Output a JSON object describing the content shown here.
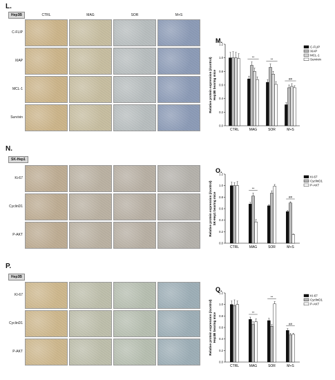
{
  "panels": {
    "L": {
      "letter": "L.",
      "tag": "Hep3B",
      "cols": [
        "CTRL",
        "MAG",
        "SOR",
        "M+S"
      ],
      "rows": [
        "C-FLIP",
        "XIAP",
        "MCL-1",
        "Survivin"
      ],
      "tint": [
        "#cdb68c",
        "#c8bfa2",
        "#b9bfc0",
        "#8e9db8"
      ]
    },
    "N": {
      "letter": "N.",
      "tag": "SK-Hep1",
      "rows": [
        "Ki-67",
        "CyclinD1",
        "P-AKT"
      ],
      "tint": [
        "#bfae95",
        "#bcb3a4",
        "#b9b1a5",
        "#b6b3ad"
      ]
    },
    "P": {
      "letter": "P.",
      "tag": "Hep3B",
      "rows": [
        "KI-67",
        "CyclinD1",
        "P-AKT"
      ],
      "tint": [
        "#cfb98f",
        "#bfc0ad",
        "#b8c0b2",
        "#9fb0b8"
      ]
    }
  },
  "chart_data": [
    {
      "panel": "M.",
      "type": "bar",
      "categories": [
        "CTRL",
        "MAG",
        "SOR",
        "M+S"
      ],
      "ylabel": "Relative protein expression (/control)",
      "ylabel2": "Hep3B bearing mice",
      "ylim": [
        0,
        1.2
      ],
      "yticks": [
        "0.0",
        "0.2",
        "0.4",
        "0.6",
        "0.8",
        "1.0",
        "1.2"
      ],
      "series": [
        {
          "name": "C-FLIP",
          "values": [
            1.0,
            0.69,
            0.64,
            0.31
          ],
          "err": [
            0.08,
            0.04,
            0.04,
            0.03
          ],
          "fill": "#111111"
        },
        {
          "name": "XIAP",
          "values": [
            1.0,
            0.89,
            0.86,
            0.56
          ],
          "err": [
            0.09,
            0.05,
            0.05,
            0.04
          ],
          "fill": "#bbbbbb"
        },
        {
          "name": "MCL-1",
          "values": [
            1.0,
            0.8,
            0.76,
            0.58
          ],
          "err": [
            0.08,
            0.05,
            0.04,
            0.04
          ],
          "fill": "#dddddd"
        },
        {
          "name": "Survivin",
          "values": [
            0.99,
            0.68,
            0.61,
            0.56
          ],
          "err": [
            0.07,
            0.04,
            0.04,
            0.03
          ],
          "fill": "#ffffff"
        }
      ],
      "sig": {
        "MAG": "**",
        "SOR": "**",
        "M+S": "##"
      }
    },
    {
      "panel": "O.",
      "type": "bar",
      "categories": [
        "CTRL",
        "MAG",
        "SOR",
        "M+S"
      ],
      "ylabel": "Relative protein expression (/control)",
      "ylabel2": "SK-Hep1 bearing mice",
      "ylim": [
        0,
        1.2
      ],
      "yticks": [
        "0.0",
        "0.2",
        "0.4",
        "0.6",
        "0.8",
        "1.0",
        "1.2"
      ],
      "series": [
        {
          "name": "Ki-67",
          "values": [
            1.0,
            0.68,
            0.65,
            0.55
          ],
          "err": [
            0.06,
            0.03,
            0.02,
            0.02
          ],
          "fill": "#111111"
        },
        {
          "name": "CyclinD1",
          "values": [
            1.0,
            0.82,
            0.87,
            0.7
          ],
          "err": [
            0.05,
            0.05,
            0.04,
            0.02
          ],
          "fill": "#bbbbbb"
        },
        {
          "name": "P-AKT",
          "values": [
            1.0,
            0.37,
            0.99,
            0.15
          ],
          "err": [
            0.07,
            0.04,
            0.03,
            0.01
          ],
          "fill": "#ffffff"
        }
      ],
      "sig": {
        "MAG": "**",
        "SOR": "",
        "M+S": "##"
      }
    },
    {
      "panel": "Q.",
      "type": "bar",
      "categories": [
        "CTRL",
        "MAG",
        "SOR",
        "M+S"
      ],
      "ylabel": "Relative protein expression (/control)",
      "ylabel2": "Hep3B bearing mice",
      "ylim": [
        0,
        1.2
      ],
      "yticks": [
        "0.0",
        "0.2",
        "0.4",
        "0.6",
        "0.8",
        "1.0",
        "1.2"
      ],
      "series": [
        {
          "name": "KI-67",
          "values": [
            1.0,
            0.74,
            0.72,
            0.55
          ],
          "err": [
            0.06,
            0.04,
            0.04,
            0.03
          ],
          "fill": "#111111"
        },
        {
          "name": "CyclinD1",
          "values": [
            0.98,
            0.65,
            0.62,
            0.47
          ],
          "err": [
            0.1,
            0.05,
            0.03,
            0.03
          ],
          "fill": "#bbbbbb"
        },
        {
          "name": "P-AKT",
          "values": [
            1.0,
            0.7,
            1.01,
            0.48
          ],
          "err": [
            0.06,
            0.05,
            0.04,
            0.02
          ],
          "fill": "#ffffff"
        }
      ],
      "sig": {
        "MAG": "**",
        "SOR": "**",
        "M+S": "##"
      }
    }
  ]
}
